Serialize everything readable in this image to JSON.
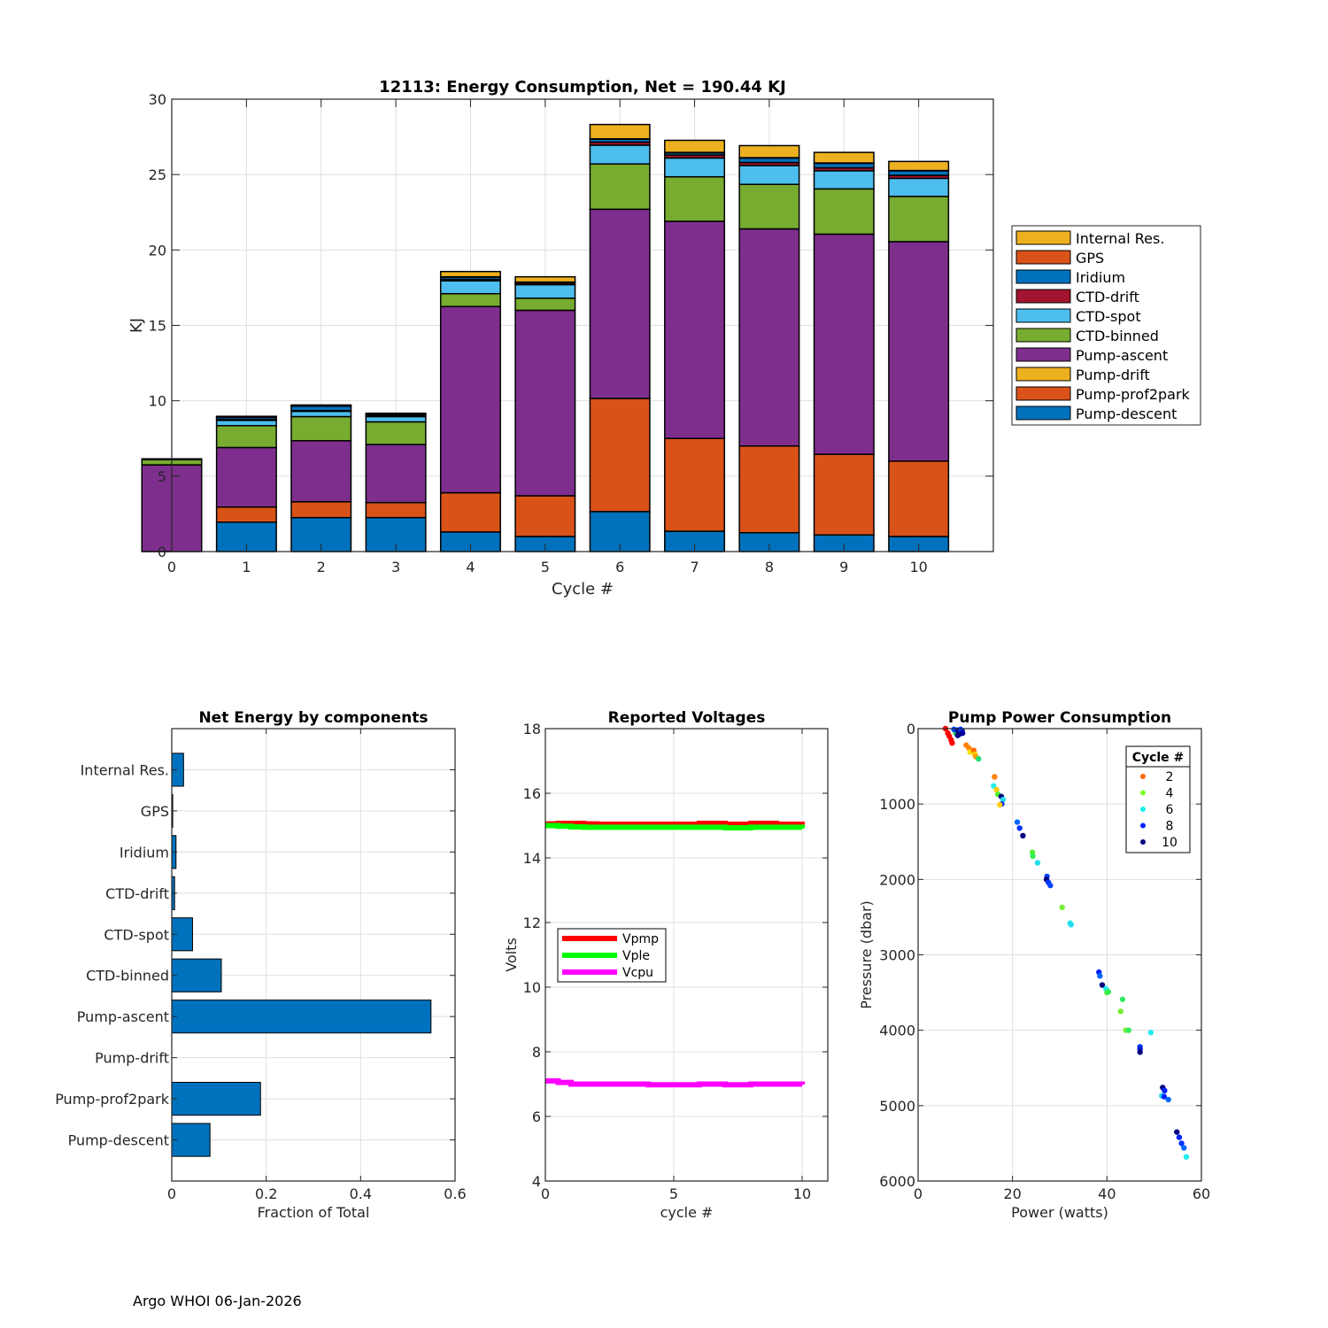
{
  "footer": "Argo WHOI 06-Jan-2026",
  "chart_data": [
    {
      "id": "energy",
      "type": "bar",
      "stacked": true,
      "title": "12113: Energy Consumption,  Net = 190.44 KJ",
      "xlabel": "Cycle #",
      "ylabel": "KJ",
      "xlim": [
        0,
        11
      ],
      "ylim": [
        0,
        30
      ],
      "xticks": [
        0,
        1,
        2,
        3,
        4,
        5,
        6,
        7,
        8,
        9,
        10
      ],
      "yticks": [
        0,
        5,
        10,
        15,
        20,
        25,
        30
      ],
      "grid": true,
      "legend_position": "outside-right",
      "categories": [
        0,
        1,
        2,
        3,
        4,
        5,
        6,
        7,
        8,
        9,
        10
      ],
      "series": [
        {
          "name": "Pump-descent",
          "color": "#0072BD",
          "values": [
            0,
            1.95,
            2.25,
            2.25,
            1.3,
            1.0,
            2.65,
            1.35,
            1.25,
            1.1,
            1.0
          ]
        },
        {
          "name": "Pump-prof2park",
          "color": "#D95319",
          "values": [
            0,
            1.0,
            1.05,
            1.0,
            2.6,
            2.7,
            7.5,
            6.15,
            5.75,
            5.35,
            5.0
          ]
        },
        {
          "name": "Pump-drift",
          "color": "#EDB120",
          "values": [
            0,
            0,
            0,
            0,
            0,
            0,
            0,
            0,
            0,
            0,
            0
          ]
        },
        {
          "name": "Pump-ascent",
          "color": "#7E2F8E",
          "values": [
            5.75,
            3.95,
            4.05,
            3.85,
            12.35,
            12.3,
            12.55,
            14.4,
            14.4,
            14.6,
            14.55
          ]
        },
        {
          "name": "CTD-binned",
          "color": "#77AC30",
          "values": [
            0.35,
            1.45,
            1.6,
            1.5,
            0.85,
            0.8,
            3.0,
            2.95,
            2.95,
            3.0,
            3.0
          ]
        },
        {
          "name": "CTD-spot",
          "color": "#4DBEEE",
          "values": [
            0,
            0.35,
            0.35,
            0.35,
            0.85,
            0.9,
            1.25,
            1.25,
            1.25,
            1.2,
            1.2
          ]
        },
        {
          "name": "CTD-drift",
          "color": "#A2142F",
          "values": [
            0,
            0.05,
            0.05,
            0.05,
            0.1,
            0.1,
            0.2,
            0.2,
            0.2,
            0.2,
            0.2
          ]
        },
        {
          "name": "Iridium",
          "color": "#0072BD",
          "values": [
            0,
            0.15,
            0.3,
            0.1,
            0.15,
            0.05,
            0.2,
            0.15,
            0.3,
            0.3,
            0.3
          ]
        },
        {
          "name": "GPS",
          "color": "#D95319",
          "values": [
            0,
            0.02,
            0.02,
            0.02,
            0.02,
            0.02,
            0.02,
            0.02,
            0.02,
            0.02,
            0.02
          ]
        },
        {
          "name": "Internal Res.",
          "color": "#EDB120",
          "values": [
            0.05,
            0.05,
            0.05,
            0.05,
            0.35,
            0.35,
            0.95,
            0.8,
            0.8,
            0.7,
            0.6
          ]
        }
      ],
      "legend_order": [
        "Internal Res.",
        "GPS",
        "Iridium",
        "CTD-drift",
        "CTD-spot",
        "CTD-binned",
        "Pump-ascent",
        "Pump-drift",
        "Pump-prof2park",
        "Pump-descent"
      ]
    },
    {
      "id": "components",
      "type": "bar",
      "orientation": "horizontal",
      "title": "Net Energy by components",
      "xlabel": "Fraction of Total",
      "ylabel": "",
      "xlim": [
        0,
        0.6
      ],
      "xticks": [
        0,
        0.2,
        0.4,
        0.6
      ],
      "xticklabels": [
        "0",
        "0.2",
        "0.4",
        "0.6"
      ],
      "grid": true,
      "color": "#0072BD",
      "categories": [
        "Internal Res.",
        "GPS",
        "Iridium",
        "CTD-drift",
        "CTD-spot",
        "CTD-binned",
        "Pump-ascent",
        "Pump-drift",
        "Pump-prof2park",
        "Pump-descent"
      ],
      "values": [
        0.025,
        0.002,
        0.009,
        0.006,
        0.044,
        0.105,
        0.549,
        0.0,
        0.188,
        0.081
      ]
    },
    {
      "id": "voltages",
      "type": "line",
      "title": "Reported Voltages",
      "xlabel": "cycle #",
      "ylabel": "Volts",
      "xlim": [
        0,
        11
      ],
      "ylim": [
        4,
        18
      ],
      "xticks": [
        0,
        5,
        10
      ],
      "yticks": [
        4,
        6,
        8,
        10,
        12,
        14,
        16,
        18
      ],
      "grid": true,
      "legend_position": "left-middle",
      "x": [
        0,
        0.5,
        1,
        1.5,
        2,
        3,
        4,
        5,
        6,
        7,
        8,
        9,
        10
      ],
      "series": [
        {
          "name": "Vpmp",
          "color": "#FF0000",
          "values": [
            15.05,
            15.07,
            15.07,
            15.05,
            15.04,
            15.04,
            15.04,
            15.04,
            15.07,
            15.04,
            15.07,
            15.04,
            15.03
          ]
        },
        {
          "name": "Vple",
          "color": "#00FF00",
          "values": [
            15.0,
            14.98,
            14.96,
            14.95,
            14.95,
            14.95,
            14.95,
            14.95,
            14.95,
            14.93,
            14.95,
            14.95,
            14.91
          ]
        },
        {
          "name": "Vcpu",
          "color": "#FF00FF",
          "values": [
            7.1,
            7.05,
            7.0,
            7.0,
            7.0,
            7.0,
            6.98,
            6.98,
            7.0,
            6.98,
            7.0,
            7.0,
            6.98
          ]
        }
      ]
    },
    {
      "id": "pump",
      "type": "scatter",
      "title": "Pump Power Consumption",
      "xlabel": "Power (watts)",
      "ylabel": "Pressure (dbar)",
      "xlim": [
        0,
        60
      ],
      "ylim": [
        0,
        6000
      ],
      "y_reversed": true,
      "xticks": [
        0,
        20,
        40,
        60
      ],
      "yticks": [
        0,
        1000,
        2000,
        3000,
        4000,
        5000,
        6000
      ],
      "grid": true,
      "legend_title": "Cycle #",
      "legend_position": "top-right",
      "legend_entries": [
        {
          "label": "2",
          "color": "#FF6A00"
        },
        {
          "label": "4",
          "color": "#7FFF2A"
        },
        {
          "label": "6",
          "color": "#1AF0F0"
        },
        {
          "label": "8",
          "color": "#0022FF"
        },
        {
          "label": "10",
          "color": "#000080"
        }
      ],
      "points": [
        {
          "x": 5.8,
          "y": 0,
          "c": "#FF0000"
        },
        {
          "x": 6.3,
          "y": 60,
          "c": "#FF0000"
        },
        {
          "x": 6.6,
          "y": 100,
          "c": "#FF0000"
        },
        {
          "x": 7.0,
          "y": 150,
          "c": "#FF0000"
        },
        {
          "x": 7.2,
          "y": 190,
          "c": "#FF0000"
        },
        {
          "x": 7.8,
          "y": 30,
          "c": "#FFD000"
        },
        {
          "x": 8.0,
          "y": 60,
          "c": "#22CC55"
        },
        {
          "x": 7.6,
          "y": 10,
          "c": "#0044FF"
        },
        {
          "x": 8.3,
          "y": 20,
          "c": "#0022CC"
        },
        {
          "x": 8.6,
          "y": 40,
          "c": "#000080"
        },
        {
          "x": 9.0,
          "y": 60,
          "c": "#000080"
        },
        {
          "x": 9.3,
          "y": 30,
          "c": "#000080"
        },
        {
          "x": 8.8,
          "y": 70,
          "c": "#000080"
        },
        {
          "x": 8.4,
          "y": 90,
          "c": "#000080"
        },
        {
          "x": 9.0,
          "y": 10,
          "c": "#0033FF"
        },
        {
          "x": 9.4,
          "y": 60,
          "c": "#000099"
        },
        {
          "x": 10.2,
          "y": 220,
          "c": "#FF8000"
        },
        {
          "x": 10.8,
          "y": 260,
          "c": "#FF8000"
        },
        {
          "x": 11.0,
          "y": 310,
          "c": "#FFE000"
        },
        {
          "x": 11.8,
          "y": 290,
          "c": "#FF6A00"
        },
        {
          "x": 12.0,
          "y": 340,
          "c": "#FFD000"
        },
        {
          "x": 12.2,
          "y": 370,
          "c": "#FFA000"
        },
        {
          "x": 12.8,
          "y": 400,
          "c": "#22DD77"
        },
        {
          "x": 16.2,
          "y": 640,
          "c": "#FF8000"
        },
        {
          "x": 16.0,
          "y": 760,
          "c": "#22EEEE"
        },
        {
          "x": 16.6,
          "y": 810,
          "c": "#FFCC00"
        },
        {
          "x": 16.9,
          "y": 870,
          "c": "#55EE33"
        },
        {
          "x": 17.6,
          "y": 900,
          "c": "#000080"
        },
        {
          "x": 18.0,
          "y": 940,
          "c": "#22DDEE"
        },
        {
          "x": 17.7,
          "y": 1000,
          "c": "#0022FF"
        },
        {
          "x": 17.3,
          "y": 1010,
          "c": "#FFCC00"
        },
        {
          "x": 21.0,
          "y": 1240,
          "c": "#0066FF"
        },
        {
          "x": 21.5,
          "y": 1320,
          "c": "#0033FF"
        },
        {
          "x": 22.2,
          "y": 1420,
          "c": "#000080"
        },
        {
          "x": 24.2,
          "y": 1640,
          "c": "#55EE33"
        },
        {
          "x": 24.3,
          "y": 1690,
          "c": "#33EE55"
        },
        {
          "x": 25.3,
          "y": 1780,
          "c": "#22DDEE"
        },
        {
          "x": 27.3,
          "y": 1960,
          "c": "#0044FF"
        },
        {
          "x": 27.2,
          "y": 2000,
          "c": "#000080"
        },
        {
          "x": 27.6,
          "y": 2040,
          "c": "#0033FF"
        },
        {
          "x": 28.0,
          "y": 2080,
          "c": "#0044FF"
        },
        {
          "x": 30.5,
          "y": 2370,
          "c": "#77EE33"
        },
        {
          "x": 32.2,
          "y": 2580,
          "c": "#22EEEE"
        },
        {
          "x": 32.4,
          "y": 2600,
          "c": "#22DDEE"
        },
        {
          "x": 38.3,
          "y": 3230,
          "c": "#0022FF"
        },
        {
          "x": 38.5,
          "y": 3280,
          "c": "#0066FF"
        },
        {
          "x": 39.0,
          "y": 3400,
          "c": "#000080"
        },
        {
          "x": 39.8,
          "y": 3450,
          "c": "#22EEEE"
        },
        {
          "x": 40.0,
          "y": 3500,
          "c": "#55EE33"
        },
        {
          "x": 40.3,
          "y": 3490,
          "c": "#33EE55"
        },
        {
          "x": 43.3,
          "y": 3590,
          "c": "#33EE66"
        },
        {
          "x": 42.9,
          "y": 3750,
          "c": "#77EE33"
        },
        {
          "x": 44.0,
          "y": 4000,
          "c": "#77EE33"
        },
        {
          "x": 44.6,
          "y": 4000,
          "c": "#33EE66"
        },
        {
          "x": 49.3,
          "y": 4030,
          "c": "#22EEEE"
        },
        {
          "x": 47.0,
          "y": 4220,
          "c": "#0033FF"
        },
        {
          "x": 47.0,
          "y": 4250,
          "c": "#0022CC"
        },
        {
          "x": 47.0,
          "y": 4290,
          "c": "#000080"
        },
        {
          "x": 51.8,
          "y": 4760,
          "c": "#000080"
        },
        {
          "x": 52.2,
          "y": 4800,
          "c": "#0022FF"
        },
        {
          "x": 51.6,
          "y": 4870,
          "c": "#22DDEE"
        },
        {
          "x": 52.1,
          "y": 4880,
          "c": "#0022FF"
        },
        {
          "x": 53.0,
          "y": 4920,
          "c": "#0066FF"
        },
        {
          "x": 54.8,
          "y": 5350,
          "c": "#000080"
        },
        {
          "x": 55.3,
          "y": 5420,
          "c": "#0022FF"
        },
        {
          "x": 55.8,
          "y": 5500,
          "c": "#0033FF"
        },
        {
          "x": 56.3,
          "y": 5560,
          "c": "#0066FF"
        },
        {
          "x": 56.8,
          "y": 5680,
          "c": "#22EEEE"
        }
      ]
    }
  ]
}
